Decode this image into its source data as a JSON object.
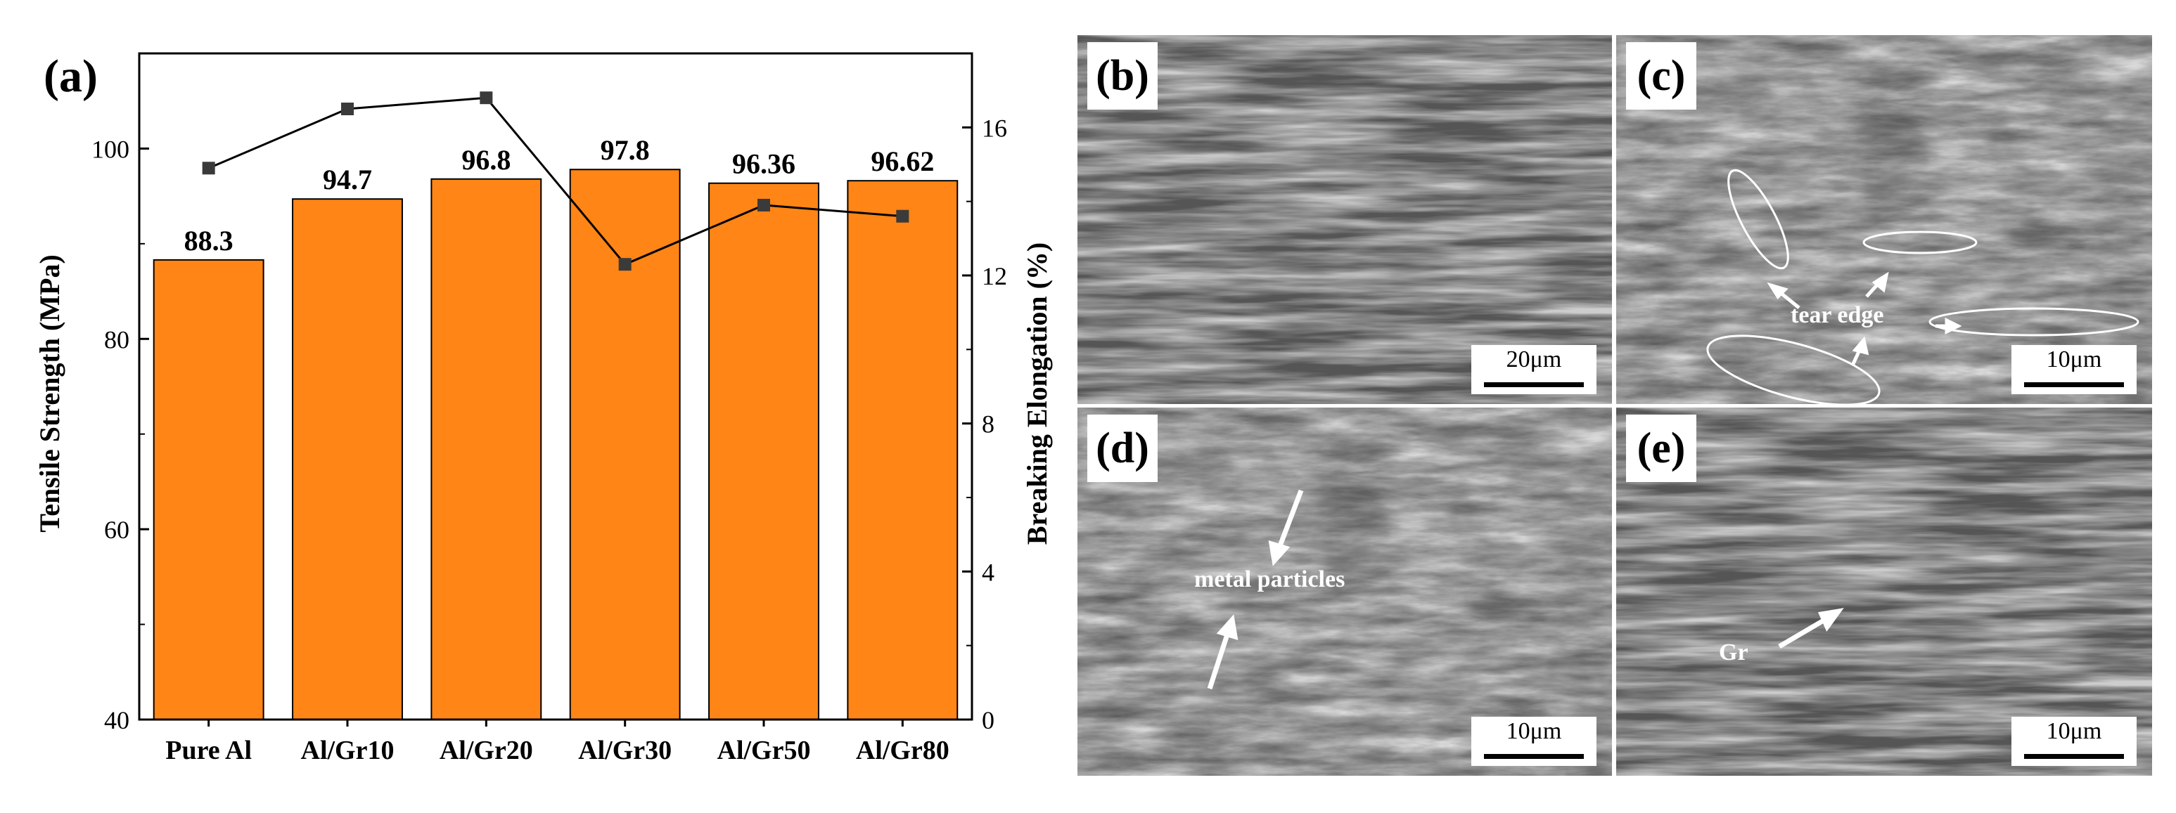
{
  "panel_a": {
    "label": "(a)",
    "chart_data": {
      "type": "bar",
      "categories": [
        "Pure Al",
        "Al/Gr10",
        "Al/Gr20",
        "Al/Gr30",
        "Al/Gr50",
        "Al/Gr80"
      ],
      "series": [
        {
          "name": "Tensile Strength",
          "chart": "bar",
          "axis": "left",
          "values": [
            88.3,
            94.7,
            96.8,
            97.8,
            96.36,
            96.62
          ],
          "labels": [
            "88.3",
            "94.7",
            "96.8",
            "97.8",
            "96.36",
            "96.62"
          ]
        },
        {
          "name": "Breaking Elongation",
          "chart": "line",
          "axis": "right",
          "values": [
            14.9,
            16.5,
            16.8,
            12.3,
            13.9,
            13.6
          ]
        }
      ],
      "xlabel": "",
      "ylabel": "Tensile Strength (MPa)",
      "y2label": "Breaking Elongation (%)",
      "ylim": [
        40,
        110
      ],
      "y2lim": [
        0,
        18
      ],
      "yticks": [
        40,
        60,
        80,
        100
      ],
      "y2ticks": [
        0,
        4,
        8,
        12,
        16
      ],
      "grid": false,
      "colors": {
        "bar": "#FF8516",
        "bar_edge": "#000000",
        "line": "#000000",
        "marker": "#3a3a3a"
      }
    }
  },
  "panel_b": {
    "label": "(b)",
    "scale": "20μm"
  },
  "panel_c": {
    "label": "(c)",
    "scale": "10μm",
    "annotation": "tear edge"
  },
  "panel_d": {
    "label": "(d)",
    "scale": "10μm",
    "annotation": "metal particles"
  },
  "panel_e": {
    "label": "(e)",
    "scale": "10μm",
    "annotation": "Gr"
  }
}
